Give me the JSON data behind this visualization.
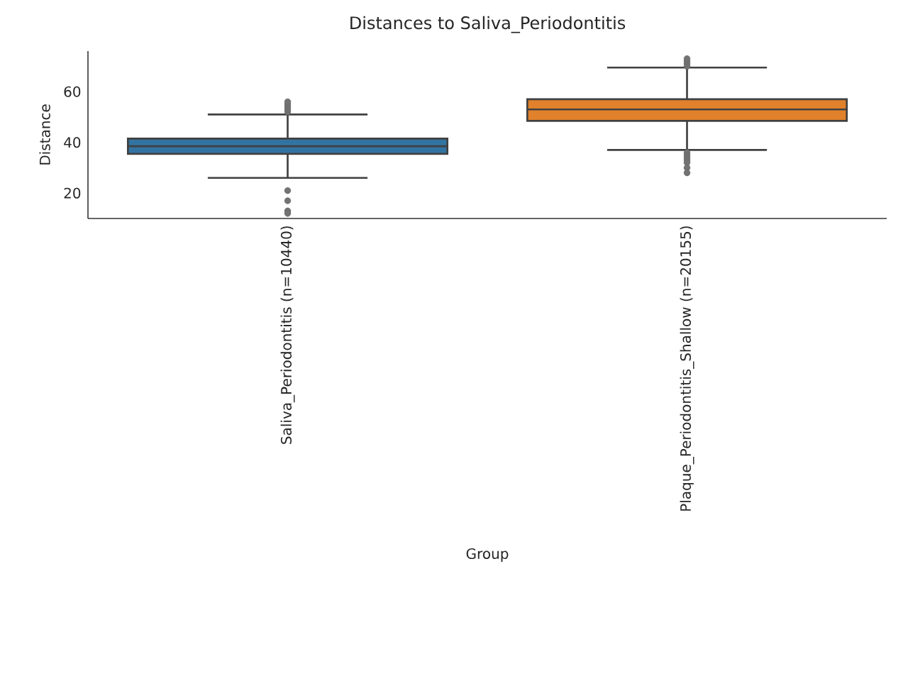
{
  "chart_data": {
    "type": "box",
    "title": "Distances to Saliva_Periodontitis",
    "xlabel": "Group",
    "ylabel": "Distance",
    "categories": [
      "Saliva_Periodontitis (n=10440)",
      "Plaque_Periodontitis_Shallow (n=20155)"
    ],
    "colors": [
      "#3274a1",
      "#e1812c"
    ],
    "boxes": [
      {
        "low": 26,
        "q1": 35.5,
        "median": 38.5,
        "q3": 41.5,
        "high": 51,
        "outliers": [
          52,
          53,
          54,
          55,
          56,
          21,
          17,
          13,
          12
        ]
      },
      {
        "low": 37,
        "q1": 48.5,
        "median": 53,
        "q3": 57,
        "high": 69.5,
        "outliers": [
          70,
          71,
          72,
          73,
          36,
          35,
          34,
          33,
          32,
          30,
          28
        ]
      }
    ],
    "ylim": [
      10,
      76
    ],
    "yticks": [
      20,
      40,
      60
    ]
  }
}
